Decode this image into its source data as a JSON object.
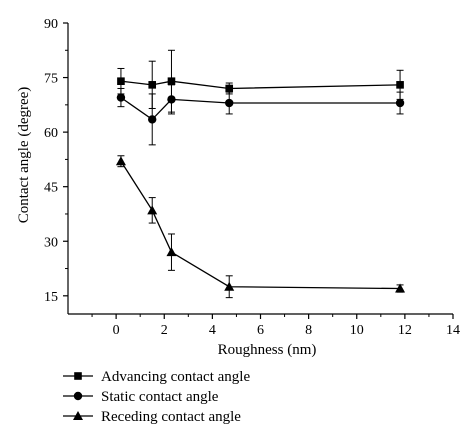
{
  "chart_data": {
    "type": "line",
    "xlabel": "Roughness (nm)",
    "ylabel": "Contact angle (degree)",
    "xlim": [
      -2,
      14
    ],
    "ylim": [
      10,
      90
    ],
    "xticks": [
      0,
      2,
      4,
      6,
      8,
      10,
      12,
      14
    ],
    "yticks": [
      15,
      30,
      45,
      60,
      75,
      90
    ],
    "grid": false,
    "legend_position": "bottom-left (below plot)",
    "x": [
      0.2,
      1.5,
      2.3,
      4.7,
      11.8
    ],
    "series": [
      {
        "name": "Advancing contact angle",
        "marker": "square",
        "values": [
          74,
          73,
          74,
          72,
          73
        ],
        "error": [
          3.5,
          6.5,
          8.5,
          1.5,
          4
        ]
      },
      {
        "name": "Static contact angle",
        "marker": "circle",
        "values": [
          69.5,
          63.5,
          69,
          68,
          68
        ],
        "error": [
          2.5,
          7,
          4,
          3,
          3
        ]
      },
      {
        "name": "Receding contact angle",
        "marker": "triangle",
        "values": [
          52,
          38.5,
          27,
          17.5,
          17
        ],
        "error": [
          1.5,
          3.5,
          5,
          3,
          1
        ]
      }
    ]
  }
}
